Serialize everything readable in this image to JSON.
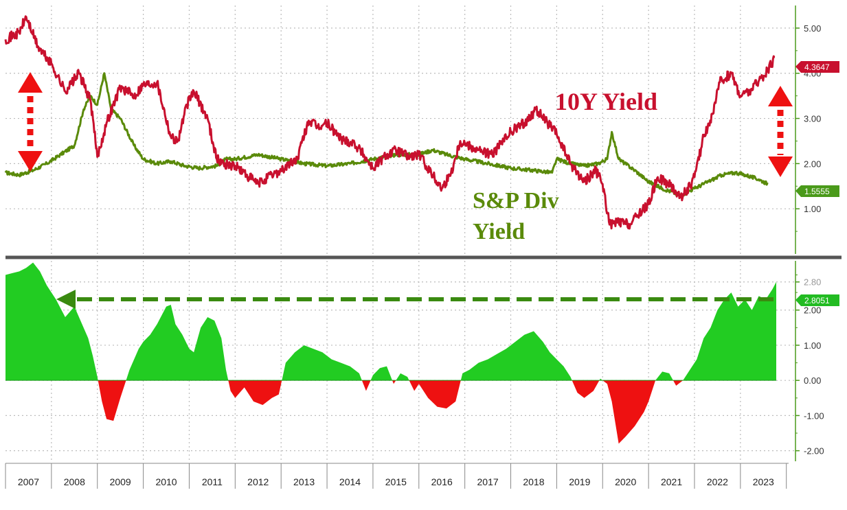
{
  "colors": {
    "yield10y": "#c8102e",
    "dividend": "#5a8a0a",
    "spread_positive": "#22cc22",
    "spread_negative": "#ee1111",
    "arrow_red": "#ee1111",
    "arrow_green": "#3a8a10",
    "axis_green": "#4a9a1a",
    "divider": "#555555",
    "grid": "#bbbbbb"
  },
  "chart_data": [
    {
      "type": "line",
      "grid": true,
      "ylim": [
        0,
        5.5
      ],
      "yticks": [
        "1.00",
        "2.00",
        "3.00",
        "4.00",
        "5.00"
      ],
      "annotations": {
        "yield_label": "10Y Yield",
        "div_label_line1": "S&P Div",
        "div_label_line2": "Yield"
      },
      "series": [
        {
          "name": "10Y Yield",
          "last_value_label": "4.3647",
          "x": [
            2007.0,
            2007.3,
            2007.45,
            2007.7,
            2008.0,
            2008.3,
            2008.6,
            2008.85,
            2009.0,
            2009.2,
            2009.5,
            2009.8,
            2010.0,
            2010.3,
            2010.6,
            2010.75,
            2010.95,
            2011.1,
            2011.4,
            2011.6,
            2011.75,
            2012.0,
            2012.3,
            2012.5,
            2012.8,
            2013.0,
            2013.35,
            2013.6,
            2013.8,
            2014.0,
            2014.3,
            2014.6,
            2014.8,
            2015.0,
            2015.3,
            2015.5,
            2015.8,
            2016.0,
            2016.3,
            2016.5,
            2016.7,
            2016.9,
            2017.0,
            2017.3,
            2017.6,
            2017.8,
            2018.0,
            2018.3,
            2018.55,
            2018.8,
            2019.0,
            2019.3,
            2019.6,
            2019.85,
            2020.0,
            2020.15,
            2020.35,
            2020.6,
            2020.8,
            2021.0,
            2021.2,
            2021.5,
            2021.7,
            2021.9,
            2022.0,
            2022.2,
            2022.4,
            2022.55,
            2022.8,
            2023.0,
            2023.2,
            2023.45,
            2023.6,
            2023.75
          ],
          "values": [
            4.75,
            4.9,
            5.25,
            4.6,
            4.2,
            3.6,
            4.0,
            3.4,
            2.15,
            2.9,
            3.7,
            3.5,
            3.75,
            3.8,
            2.6,
            2.5,
            3.3,
            3.6,
            3.0,
            2.1,
            2.0,
            1.95,
            1.7,
            1.55,
            1.75,
            1.85,
            2.1,
            2.95,
            2.8,
            2.9,
            2.55,
            2.45,
            2.2,
            1.9,
            2.2,
            2.3,
            2.15,
            2.2,
            1.75,
            1.45,
            1.8,
            2.5,
            2.45,
            2.3,
            2.2,
            2.45,
            2.7,
            2.9,
            3.2,
            2.9,
            2.65,
            2.0,
            1.6,
            1.85,
            1.55,
            0.65,
            0.7,
            0.65,
            0.9,
            1.1,
            1.7,
            1.5,
            1.25,
            1.5,
            1.7,
            2.6,
            3.1,
            3.8,
            4.0,
            3.5,
            3.6,
            3.9,
            4.05,
            4.36
          ]
        },
        {
          "name": "S&P Div Yield",
          "last_value_label": "1.5555",
          "x": [
            2007.0,
            2007.3,
            2007.6,
            2007.9,
            2008.2,
            2008.5,
            2008.7,
            2008.85,
            2009.0,
            2009.15,
            2009.3,
            2009.5,
            2009.8,
            2010.0,
            2010.3,
            2010.6,
            2010.9,
            2011.2,
            2011.6,
            2011.8,
            2012.0,
            2012.5,
            2013.0,
            2013.5,
            2014.0,
            2014.5,
            2015.0,
            2015.5,
            2016.0,
            2016.3,
            2016.6,
            2017.0,
            2017.5,
            2018.0,
            2018.5,
            2018.9,
            2019.0,
            2019.3,
            2019.6,
            2019.9,
            2020.1,
            2020.2,
            2020.35,
            2020.7,
            2021.0,
            2021.3,
            2021.7,
            2022.0,
            2022.3,
            2022.6,
            2022.9,
            2023.1,
            2023.4,
            2023.6
          ],
          "values": [
            1.8,
            1.75,
            1.85,
            2.0,
            2.2,
            2.4,
            3.2,
            3.5,
            3.3,
            4.0,
            3.2,
            3.0,
            2.4,
            2.1,
            2.0,
            2.05,
            1.95,
            1.9,
            1.95,
            2.1,
            2.1,
            2.2,
            2.1,
            2.0,
            1.95,
            2.0,
            2.1,
            2.2,
            2.2,
            2.3,
            2.2,
            2.1,
            2.0,
            1.9,
            1.85,
            1.8,
            2.1,
            2.0,
            1.95,
            2.0,
            2.1,
            2.7,
            2.1,
            1.85,
            1.6,
            1.45,
            1.3,
            1.45,
            1.6,
            1.75,
            1.8,
            1.75,
            1.65,
            1.55
          ]
        }
      ]
    },
    {
      "type": "area",
      "grid": true,
      "ylim": [
        -2.3,
        3.4
      ],
      "yticks": [
        "-2.00",
        "-1.00",
        "0.00",
        "1.00",
        "2.00",
        "2.80"
      ],
      "last_value_label": "2.8051",
      "x_axis_labels": [
        "2007",
        "2008",
        "2009",
        "2010",
        "2011",
        "2012",
        "2013",
        "2014",
        "2015",
        "2016",
        "2017",
        "2018",
        "2019",
        "2020",
        "2021",
        "2022",
        "2023"
      ],
      "x_range": [
        2007.0,
        2023.78
      ],
      "series": [
        {
          "x": [
            2007.0,
            2007.15,
            2007.3,
            2007.45,
            2007.6,
            2007.75,
            2007.9,
            2008.1,
            2008.3,
            2008.5,
            2008.7,
            2008.8,
            2008.9,
            2009.0,
            2009.1,
            2009.2,
            2009.35,
            2009.5,
            2009.7,
            2009.9,
            2010.0,
            2010.15,
            2010.3,
            2010.5,
            2010.6,
            2010.7,
            2010.85,
            2011.0,
            2011.1,
            2011.25,
            2011.4,
            2011.55,
            2011.7,
            2011.8,
            2011.9,
            2012.0,
            2012.2,
            2012.4,
            2012.6,
            2012.8,
            2012.95,
            2013.1,
            2013.3,
            2013.5,
            2013.7,
            2013.9,
            2014.1,
            2014.3,
            2014.5,
            2014.7,
            2014.85,
            2015.0,
            2015.15,
            2015.3,
            2015.45,
            2015.6,
            2015.75,
            2015.9,
            2016.0,
            2016.2,
            2016.4,
            2016.6,
            2016.8,
            2016.95,
            2017.1,
            2017.3,
            2017.5,
            2017.7,
            2017.9,
            2018.1,
            2018.3,
            2018.5,
            2018.7,
            2018.85,
            2019.0,
            2019.15,
            2019.3,
            2019.45,
            2019.6,
            2019.8,
            2019.95,
            2020.1,
            2020.2,
            2020.35,
            2020.5,
            2020.7,
            2020.9,
            2021.0,
            2021.15,
            2021.3,
            2021.45,
            2021.6,
            2021.75,
            2021.9,
            2022.05,
            2022.2,
            2022.35,
            2022.5,
            2022.65,
            2022.8,
            2022.95,
            2023.1,
            2023.25,
            2023.4,
            2023.55,
            2023.7,
            2023.78
          ],
          "values": [
            3.0,
            3.05,
            3.1,
            3.2,
            3.35,
            3.1,
            2.7,
            2.3,
            1.8,
            2.1,
            1.5,
            1.2,
            0.7,
            0.1,
            -0.6,
            -1.1,
            -1.15,
            -0.5,
            0.3,
            0.9,
            1.1,
            1.3,
            1.6,
            2.1,
            2.15,
            1.6,
            1.3,
            0.9,
            0.8,
            1.5,
            1.8,
            1.7,
            1.2,
            0.3,
            -0.3,
            -0.5,
            -0.2,
            -0.6,
            -0.7,
            -0.5,
            -0.4,
            0.5,
            0.8,
            1.0,
            0.9,
            0.8,
            0.6,
            0.5,
            0.4,
            0.2,
            -0.3,
            0.15,
            0.35,
            0.4,
            -0.1,
            0.2,
            0.1,
            -0.3,
            -0.1,
            -0.5,
            -0.75,
            -0.8,
            -0.6,
            0.2,
            0.3,
            0.5,
            0.6,
            0.75,
            0.9,
            1.1,
            1.3,
            1.4,
            1.1,
            0.8,
            0.6,
            0.4,
            0.1,
            -0.35,
            -0.5,
            -0.3,
            0.05,
            -0.1,
            -0.6,
            -1.8,
            -1.6,
            -1.3,
            -0.9,
            -0.6,
            0.0,
            0.25,
            0.2,
            -0.15,
            0.0,
            0.3,
            0.6,
            1.2,
            1.5,
            2.0,
            2.3,
            2.5,
            2.1,
            2.3,
            2.0,
            2.4,
            2.3,
            2.6,
            2.8
          ]
        }
      ]
    }
  ]
}
